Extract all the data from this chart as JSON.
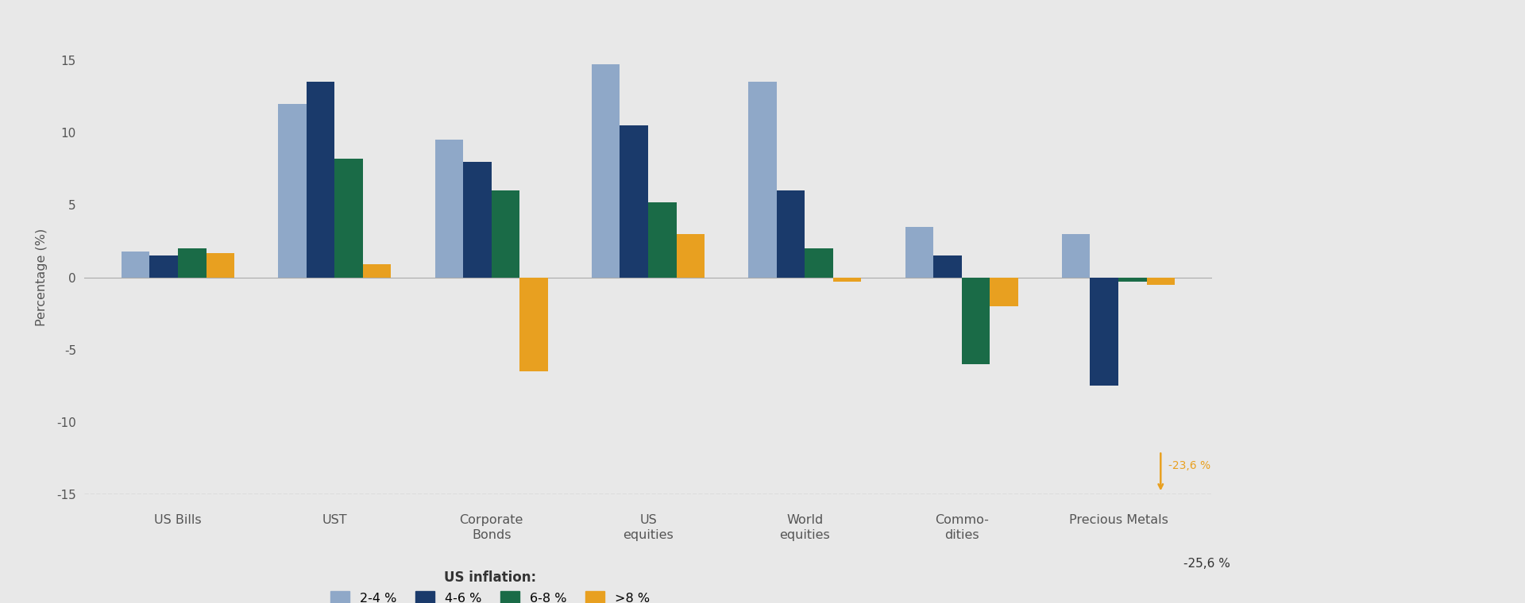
{
  "categories": [
    "US Bills",
    "UST",
    "Corporate\nBonds",
    "US\nequities",
    "World\nequities",
    "Commo-\ndities",
    "Precious Metals"
  ],
  "series": {
    "2-4 %": [
      1.8,
      12.0,
      9.5,
      14.7,
      13.5,
      3.5,
      3.0
    ],
    "4-6 %": [
      1.5,
      13.5,
      8.0,
      10.5,
      6.0,
      1.5,
      -7.5
    ],
    "6-8 %": [
      2.0,
      8.2,
      6.0,
      5.2,
      2.0,
      -6.0,
      -0.3
    ],
    ">8 %": [
      1.7,
      0.9,
      -6.5,
      3.0,
      -0.3,
      -2.0,
      -0.5
    ]
  },
  "colors": {
    "2-4 %": "#8fa8c8",
    "4-6 %": "#1a3a6b",
    "6-8 %": "#1a6b47",
    ">8 %": "#e8a020"
  },
  "ylabel": "Percentage (%)",
  "ylim": [
    -15,
    15
  ],
  "yticks": [
    -15,
    -10,
    -5,
    0,
    5,
    10,
    15
  ],
  "annotation_value": "-25,6 %",
  "annotation_arrow_value": "-23,6 %",
  "legend_title": "US inflation:",
  "background_color": "#e8e8e8",
  "right_panel_color": "#4a6741",
  "dashed_line_y": -15
}
